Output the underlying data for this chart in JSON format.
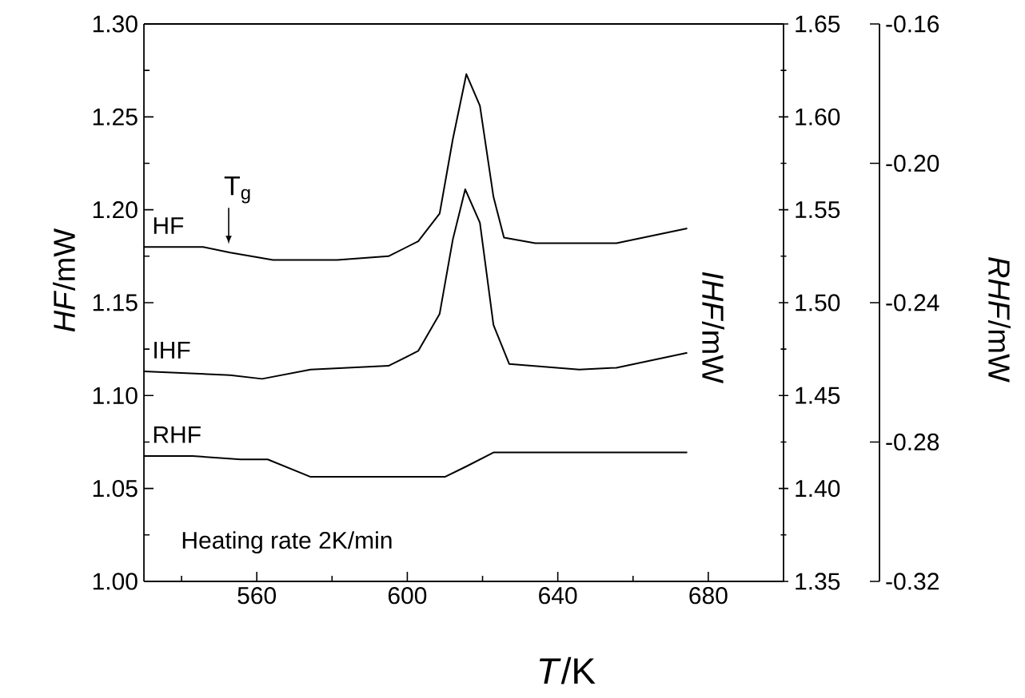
{
  "chart_data": {
    "type": "line",
    "xlabel": "*T*/K",
    "ylabel": "*HF*/mW",
    "y2label": "*IHF*/mW",
    "y3label": "*RHF*/mW",
    "xlim": [
      530,
      700
    ],
    "xticks": [
      {
        "value": 540,
        "label": null
      },
      560,
      {
        "value": 580,
        "label": null
      },
      600,
      {
        "value": 620,
        "label": null
      },
      640,
      {
        "value": 660,
        "label": null
      },
      680
    ],
    "ylim": [
      1.0,
      1.3
    ],
    "yticks": [
      {
        "value": 1.0,
        "label": "1.00"
      },
      {
        "value": 1.025,
        "label": null
      },
      {
        "value": 1.05,
        "label": "1.05"
      },
      {
        "value": 1.075,
        "label": null
      },
      {
        "value": 1.1,
        "label": "1.10"
      },
      {
        "value": 1.125,
        "label": null
      },
      {
        "value": 1.15,
        "label": "1.15"
      },
      {
        "value": 1.175,
        "label": null
      },
      {
        "value": 1.2,
        "label": "1.20"
      },
      {
        "value": 1.225,
        "label": null
      },
      {
        "value": 1.25,
        "label": "1.25"
      },
      {
        "value": 1.275,
        "label": null
      },
      {
        "value": 1.3,
        "label": "1.30"
      }
    ],
    "y2lim": [
      1.35,
      1.65
    ],
    "y2ticks": [
      {
        "value": 1.35,
        "label": "1.35"
      },
      {
        "value": 1.375,
        "label": null
      },
      {
        "value": 1.4,
        "label": "1.40"
      },
      {
        "value": 1.425,
        "label": null
      },
      {
        "value": 1.45,
        "label": "1.45"
      },
      {
        "value": 1.475,
        "label": null
      },
      {
        "value": 1.5,
        "label": "1.50"
      },
      {
        "value": 1.525,
        "label": null
      },
      {
        "value": 1.55,
        "label": "1.55"
      },
      {
        "value": 1.575,
        "label": null
      },
      {
        "value": 1.6,
        "label": "1.60"
      },
      {
        "value": 1.625,
        "label": null
      },
      {
        "value": 1.65,
        "label": "1.65"
      }
    ],
    "y3lim": [
      -0.32,
      -0.16
    ],
    "y3ticks": [
      {
        "value": -0.32,
        "label": "-0.32"
      },
      {
        "value": -0.28,
        "label": "-0.28"
      },
      {
        "value": -0.24,
        "label": "-0.24"
      },
      {
        "value": -0.2,
        "label": "-0.20"
      },
      {
        "value": -0.16,
        "label": "-0.16"
      }
    ],
    "series": [
      {
        "name": "HF",
        "color": "#000000",
        "x": [
          530,
          545.7,
          552.9,
          564.3,
          581.4,
          595,
          602.9,
          608.6,
          612.1,
          615.7,
          619.3,
          622.9,
          625.7,
          634,
          655.6,
          674.4
        ],
        "values": [
          1.18,
          1.18,
          1.177,
          1.173,
          1.173,
          1.175,
          1.183,
          1.198,
          1.238,
          1.273,
          1.256,
          1.207,
          1.185,
          1.182,
          1.182,
          1.19
        ]
      },
      {
        "name": "IHF",
        "color": "#000000",
        "axis": "y2",
        "x": [
          530,
          552.9,
          561.4,
          574.3,
          595,
          602.9,
          608.6,
          612.1,
          615.4,
          619.3,
          622.9,
          627.1,
          645.7,
          655.6,
          674.4
        ],
        "values": [
          1.463,
          1.461,
          1.459,
          1.464,
          1.466,
          1.474,
          1.494,
          1.534,
          1.561,
          1.543,
          1.488,
          1.467,
          1.464,
          1.465,
          1.473
        ]
      },
      {
        "name": "RHF",
        "color": "#000000",
        "axis": "y3",
        "x": [
          530,
          542.9,
          555.7,
          562.9,
          574.3,
          588.6,
          602.9,
          610,
          615.7,
          622.9,
          645.7,
          674.4
        ],
        "values": [
          -0.284,
          -0.284,
          -0.285,
          -0.285,
          -0.29,
          -0.29,
          -0.29,
          -0.29,
          -0.287,
          -0.283,
          -0.283,
          -0.283
        ]
      }
    ],
    "annotations": [
      "T$_{g}$",
      "Heating rate 2K/min"
    ]
  }
}
